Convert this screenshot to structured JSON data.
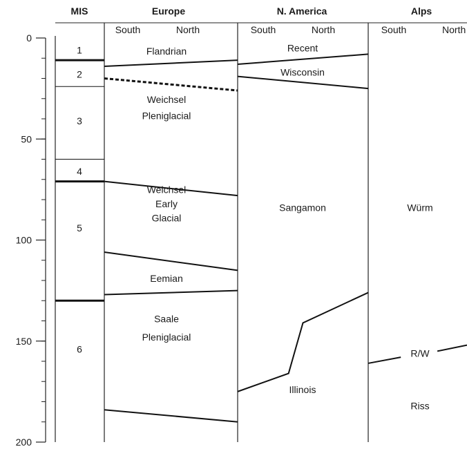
{
  "headers": {
    "mis": "MIS",
    "europe": "Europe",
    "n_america": "N. America",
    "alps": "Alps"
  },
  "subheaders": {
    "europe_south": "South",
    "europe_north": "North",
    "namerica_south": "South",
    "namerica_north": "North",
    "alps_south": "South",
    "alps_north": "North"
  },
  "depth_axis": {
    "min": 0,
    "max": 200,
    "major_ticks": [
      0,
      50,
      100,
      150,
      200
    ],
    "minor_tick_step": 10
  },
  "mis": {
    "stages": [
      {
        "label": "1",
        "center": 6
      },
      {
        "label": "2",
        "center": 18
      },
      {
        "label": "3",
        "center": 41
      },
      {
        "label": "4",
        "center": 66
      },
      {
        "label": "5",
        "center": 94
      },
      {
        "label": "6",
        "center": 154
      }
    ],
    "boundaries": [
      {
        "depth": 11,
        "bold": true
      },
      {
        "depth": 24,
        "bold": false
      },
      {
        "depth": 60,
        "bold": false
      },
      {
        "depth": 71,
        "bold": true
      },
      {
        "depth": 130,
        "bold": true
      }
    ]
  },
  "europe": {
    "labels": [
      {
        "lines": [
          "Flandrian"
        ],
        "depth": 6.5
      },
      {
        "lines": [
          "Weichsel",
          "Pleniglacial"
        ],
        "depth": 34.5,
        "line_gap": 8
      },
      {
        "lines": [
          "Weichsel",
          "Early",
          "Glacial"
        ],
        "depth": 82,
        "line_gap": 7
      },
      {
        "lines": [
          "Eemian"
        ],
        "depth": 119
      },
      {
        "lines": [
          "Saale",
          "Pleniglacial"
        ],
        "depth": 143.5,
        "line_gap": 9
      }
    ],
    "boundaries": [
      {
        "south": 14,
        "north": 11,
        "style": "solid"
      },
      {
        "south": 20,
        "north": 26,
        "style": "dashed"
      },
      {
        "south": 71,
        "north": 78,
        "style": "solid"
      },
      {
        "south": 106,
        "north": 115,
        "style": "solid"
      },
      {
        "south": 127,
        "north": 125,
        "style": "solid"
      },
      {
        "south": 184,
        "north": 190,
        "style": "solid"
      }
    ]
  },
  "n_america": {
    "labels": [
      {
        "lines": [
          "Recent"
        ],
        "depth": 5
      },
      {
        "lines": [
          "Wisconsin"
        ],
        "depth": 17
      },
      {
        "lines": [
          "Sangamon"
        ],
        "depth": 84
      },
      {
        "lines": [
          "Illinois"
        ],
        "depth": 174
      }
    ],
    "boundaries": [
      {
        "points": [
          [
            0,
            13
          ],
          [
            1,
            8
          ]
        ]
      },
      {
        "points": [
          [
            0,
            19
          ],
          [
            1,
            25
          ]
        ]
      },
      {
        "points": [
          [
            0,
            175
          ],
          [
            0.39,
            166
          ],
          [
            0.5,
            141
          ],
          [
            1,
            126
          ]
        ]
      }
    ]
  },
  "alps": {
    "labels": [
      {
        "lines": [
          "Würm"
        ],
        "depth": 84
      },
      {
        "lines": [
          "R/W"
        ],
        "depth": 156
      },
      {
        "lines": [
          "Riss"
        ],
        "depth": 182
      }
    ],
    "boundary": {
      "points": [
        [
          0,
          161
        ],
        [
          0.33,
          158
        ],
        [
          0.7,
          155
        ],
        [
          1,
          152
        ]
      ],
      "gap": [
        0.33,
        0.7
      ]
    }
  }
}
